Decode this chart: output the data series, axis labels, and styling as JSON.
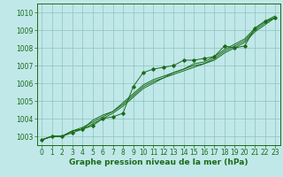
{
  "x": [
    0,
    1,
    2,
    3,
    4,
    5,
    6,
    7,
    8,
    9,
    10,
    11,
    12,
    13,
    14,
    15,
    16,
    17,
    18,
    19,
    20,
    21,
    22,
    23
  ],
  "line1": [
    1002.8,
    1003.0,
    1003.0,
    1003.2,
    1003.4,
    1003.6,
    1004.0,
    1004.1,
    1004.3,
    1005.8,
    1006.6,
    1006.8,
    1006.9,
    1007.0,
    1007.3,
    1007.3,
    1007.4,
    1007.5,
    1008.1,
    1008.0,
    1008.1,
    1009.1,
    1009.5,
    1009.7
  ],
  "line2": [
    1002.8,
    1003.0,
    1003.0,
    1003.3,
    1003.4,
    1003.9,
    1004.2,
    1004.4,
    1004.9,
    1005.4,
    1005.9,
    1006.2,
    1006.4,
    1006.6,
    1006.8,
    1007.0,
    1007.1,
    1007.4,
    1007.8,
    1008.1,
    1008.4,
    1009.0,
    1009.4,
    1009.7
  ],
  "line3": [
    1002.8,
    1003.0,
    1003.0,
    1003.3,
    1003.4,
    1003.7,
    1004.0,
    1004.3,
    1004.7,
    1005.2,
    1005.7,
    1006.0,
    1006.3,
    1006.5,
    1006.7,
    1006.9,
    1007.1,
    1007.3,
    1007.7,
    1008.0,
    1008.3,
    1008.9,
    1009.3,
    1009.7
  ],
  "line4": [
    1002.8,
    1003.0,
    1003.0,
    1003.3,
    1003.5,
    1003.8,
    1004.1,
    1004.4,
    1004.8,
    1005.3,
    1005.8,
    1006.1,
    1006.3,
    1006.6,
    1006.8,
    1007.1,
    1007.2,
    1007.5,
    1007.9,
    1008.2,
    1008.5,
    1009.1,
    1009.5,
    1009.8
  ],
  "line_color": "#1a6b1a",
  "bg_color": "#c0e8e8",
  "grid_color": "#90c0c0",
  "xlabel": "Graphe pression niveau de la mer (hPa)",
  "xlabel_color": "#1a6b1a",
  "xlabel_fontsize": 6.5,
  "tick_fontsize": 5.5,
  "ylim": [
    1002.5,
    1010.5
  ],
  "xlim": [
    -0.5,
    23.5
  ],
  "yticks": [
    1003,
    1004,
    1005,
    1006,
    1007,
    1008,
    1009,
    1010
  ],
  "xticks": [
    0,
    1,
    2,
    3,
    4,
    5,
    6,
    7,
    8,
    9,
    10,
    11,
    12,
    13,
    14,
    15,
    16,
    17,
    18,
    19,
    20,
    21,
    22,
    23
  ]
}
